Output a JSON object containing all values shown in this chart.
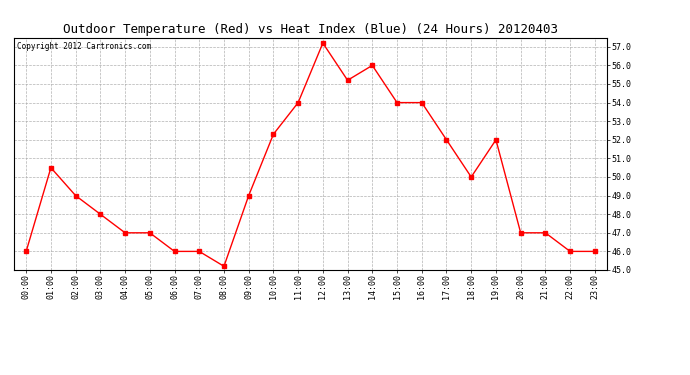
{
  "title": "Outdoor Temperature (Red) vs Heat Index (Blue) (24 Hours) 20120403",
  "copyright_text": "Copyright 2012 Cartronics.com",
  "hours": [
    "00:00",
    "01:00",
    "02:00",
    "03:00",
    "04:00",
    "05:00",
    "06:00",
    "07:00",
    "08:00",
    "09:00",
    "10:00",
    "11:00",
    "12:00",
    "13:00",
    "14:00",
    "15:00",
    "16:00",
    "17:00",
    "18:00",
    "19:00",
    "20:00",
    "21:00",
    "22:00",
    "23:00"
  ],
  "temp_red": [
    46.0,
    50.5,
    49.0,
    48.0,
    47.0,
    47.0,
    46.0,
    46.0,
    45.2,
    49.0,
    52.3,
    54.0,
    57.2,
    55.2,
    56.0,
    54.0,
    54.0,
    52.0,
    50.0,
    52.0,
    47.0,
    47.0,
    46.0,
    46.0
  ],
  "ylim_min": 45.0,
  "ylim_max": 57.5,
  "ytick_min": 45.0,
  "ytick_max": 57.0,
  "ytick_step": 1.0,
  "line_color_red": "#FF0000",
  "marker": "s",
  "marker_size": 2.5,
  "bg_color": "#FFFFFF",
  "grid_color": "#AAAAAA",
  "title_fontsize": 9,
  "tick_fontsize": 6,
  "copyright_fontsize": 5.5
}
